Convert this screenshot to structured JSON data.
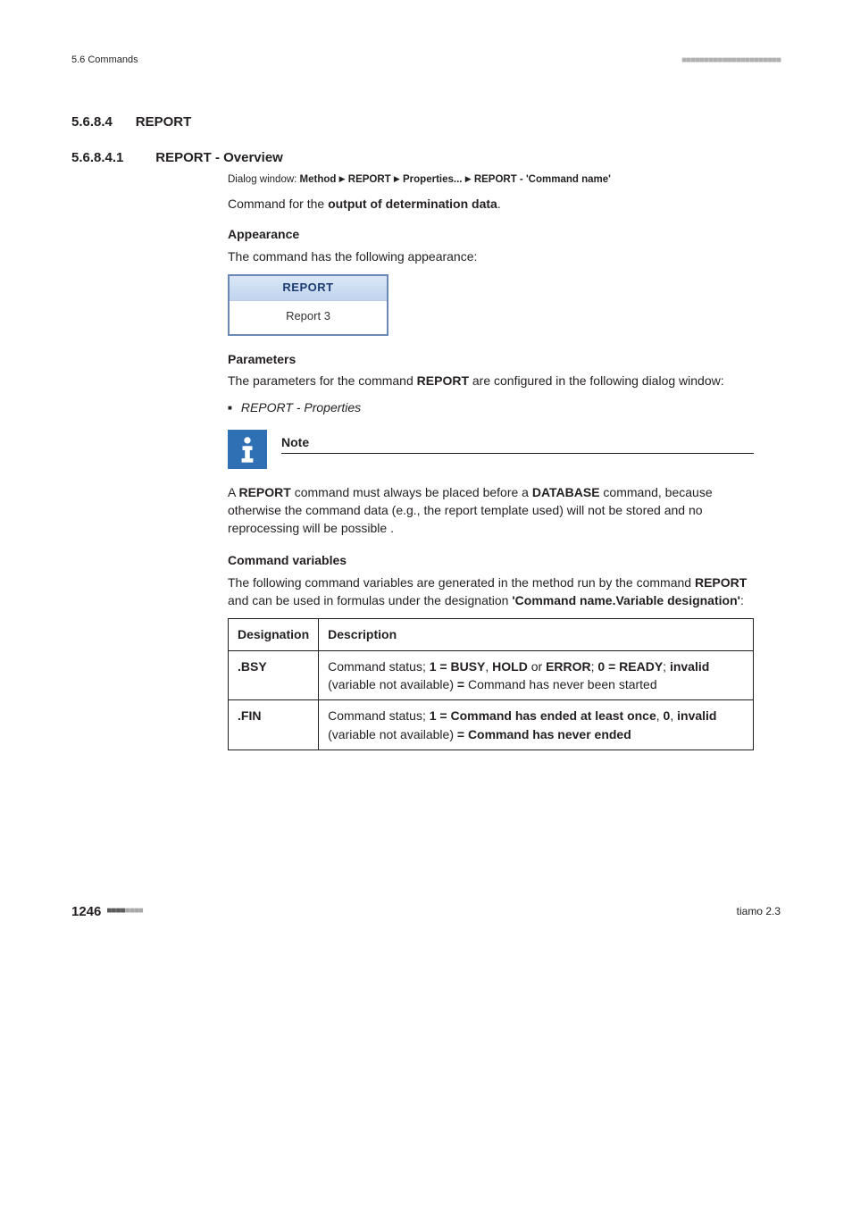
{
  "header": {
    "left": "5.6 Commands",
    "dots": "■■■■■■■■■■■■■■■■■■■■■■"
  },
  "section1": {
    "num": "5.6.8.4",
    "title": "REPORT"
  },
  "section2": {
    "num": "5.6.8.4.1",
    "title": "REPORT - Overview"
  },
  "dialog": {
    "prefix": "Dialog window: ",
    "p1": "Method",
    "p2": "REPORT",
    "p3": "Properties...",
    "p4": "REPORT - 'Command name'",
    "tri": "▶"
  },
  "intro": {
    "t1": "Command for the ",
    "t2": "output of determination data",
    "t3": "."
  },
  "appearance": {
    "heading": "Appearance",
    "text": "The command has the following appearance:"
  },
  "report_box": {
    "title": "REPORT",
    "body": "Report 3"
  },
  "parameters": {
    "heading": "Parameters",
    "t1": "The parameters for the command ",
    "t2": "REPORT",
    "t3": " are configured in the following dialog window:",
    "item": "REPORT - Properties"
  },
  "note": {
    "label": "Note",
    "t1": "A ",
    "t2": "REPORT",
    "t3": " command must always be placed before a ",
    "t4": "DATABASE",
    "t5": " command, because otherwise the command data (e.g., the report template used) will not be stored and no reprocessing will be possible ."
  },
  "cmdvars": {
    "heading": "Command variables",
    "intro_t1": "The following command variables are generated in the method run by the command ",
    "intro_t2": "REPORT",
    "intro_t3": " and can be used in formulas under the designation ",
    "intro_t4": "'Command name.Variable designation'",
    "intro_t5": ":",
    "col1": "Designation",
    "col2": "Description",
    "rows": [
      {
        "d": ".BSY",
        "p": [
          {
            "t": "Command status; ",
            "b": false
          },
          {
            "t": "1 = BUSY",
            "b": true
          },
          {
            "t": ", ",
            "b": false
          },
          {
            "t": "HOLD",
            "b": true
          },
          {
            "t": " or ",
            "b": false
          },
          {
            "t": "ERROR",
            "b": true
          },
          {
            "t": "; ",
            "b": false
          },
          {
            "t": "0 = READY",
            "b": true
          },
          {
            "t": "; ",
            "b": false
          },
          {
            "t": "invalid",
            "b": true
          },
          {
            "t": " (variable not available) ",
            "b": false
          },
          {
            "t": "=",
            "b": true
          },
          {
            "t": " Command has never been started",
            "b": false
          }
        ]
      },
      {
        "d": ".FIN",
        "p": [
          {
            "t": "Command status; ",
            "b": false
          },
          {
            "t": "1 = Command has ended at least once",
            "b": true
          },
          {
            "t": ", ",
            "b": false
          },
          {
            "t": "0",
            "b": true
          },
          {
            "t": ", ",
            "b": false
          },
          {
            "t": "invalid",
            "b": true
          },
          {
            "t": " (variable not available) ",
            "b": false
          },
          {
            "t": "= Command has never ended",
            "b": true
          }
        ]
      }
    ]
  },
  "footer": {
    "page": "1246",
    "dots_dark": "■■■■",
    "dots_light": "■■■■",
    "right": "tiamo 2.3"
  }
}
